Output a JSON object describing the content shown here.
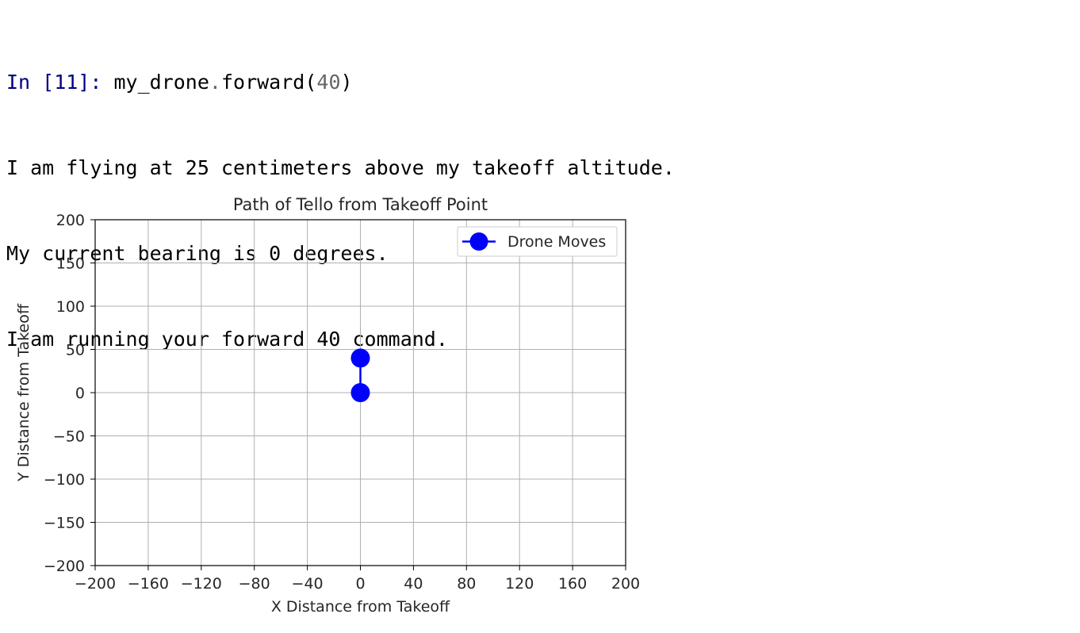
{
  "cell": {
    "prompt": "In [11]:",
    "code_obj": "my_drone",
    "code_dot": ".",
    "code_fn": "forward(",
    "code_arg": "40",
    "code_close": ")",
    "output_lines": [
      "I am flying at 25 centimeters above my takeoff altitude.",
      "My current bearing is 0 degrees.",
      "I am running your forward 40 command."
    ]
  },
  "chart_data": {
    "type": "line",
    "title": "Path of Tello from Takeoff Point",
    "xlabel": "X Distance from Takeoff",
    "ylabel": "Y Distance from Takeoff",
    "xlim": [
      -200,
      200
    ],
    "ylim": [
      -200,
      200
    ],
    "x_ticks": [
      -200,
      -160,
      -120,
      -80,
      -40,
      0,
      40,
      80,
      120,
      160,
      200
    ],
    "y_ticks": [
      -200,
      -150,
      -100,
      -50,
      0,
      50,
      100,
      150,
      200
    ],
    "x_tick_labels": [
      "−200",
      "−160",
      "−120",
      "−80",
      "−40",
      "0",
      "40",
      "80",
      "120",
      "160",
      "200"
    ],
    "y_tick_labels": [
      "−200",
      "−150",
      "−100",
      "−50",
      "0",
      "50",
      "100",
      "150",
      "200"
    ],
    "grid": true,
    "legend": "top-right",
    "series": [
      {
        "name": "Drone Moves",
        "color": "#0000ff",
        "marker": "circle",
        "x": [
          0,
          0
        ],
        "y": [
          0,
          40
        ]
      }
    ]
  }
}
